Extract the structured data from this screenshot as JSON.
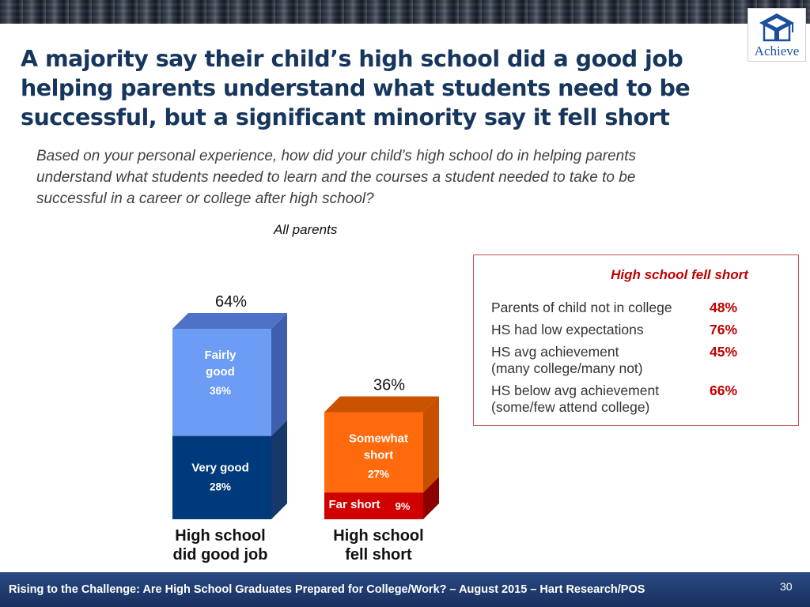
{
  "title_lines": [
    "A majority say their child’s high school did a good job",
    "helping parents understand what students need to be",
    "successful, but a significant minority say it fell short"
  ],
  "question_lines": [
    "Based on your personal experience, how did your child’s high school do in helping parents",
    "understand what students needed to learn and the courses a student needed to take to be",
    "successful in a career or college after high school?"
  ],
  "subset_label": "All parents",
  "logo": {
    "text": "Achieve",
    "icon": "schoolhouse-graduation-cap-icon",
    "color": "#1b4f9c"
  },
  "chart_data": {
    "type": "bar",
    "stacked": true,
    "ylim": [
      0,
      70
    ],
    "bars": [
      {
        "name": "High school did good job",
        "label_lines": [
          "High school",
          "did good job"
        ],
        "total": 64,
        "total_label": "64%",
        "segments": [
          {
            "name": "Very good",
            "label_lines": [
              "Very good"
            ],
            "value": 28,
            "value_label": "28%",
            "color": "#003a7a",
            "side_color": "#16386b",
            "label_color": "#ffffff"
          },
          {
            "name": "Fairly good",
            "label_lines": [
              "Fairly",
              "good"
            ],
            "value": 36,
            "value_label": "36%",
            "color": "#6d9cf4",
            "side_color": "#3d5fae",
            "label_color": "#ffffff"
          }
        ],
        "top_color": "#4f72c6"
      },
      {
        "name": "High school fell short",
        "label_lines": [
          "High school",
          "fell short"
        ],
        "total": 36,
        "total_label": "36%",
        "segments": [
          {
            "name": "Far short",
            "label_lines": [
              "Far short"
            ],
            "value": 9,
            "value_label": "9%",
            "color": "#d00000",
            "side_color": "#8c0000",
            "label_color": "#ffffff"
          },
          {
            "name": "Somewhat short",
            "label_lines": [
              "Somewhat",
              "short"
            ],
            "value": 27,
            "value_label": "27%",
            "color": "#ff6a0d",
            "side_color": "#c84f00",
            "label_color": "#ffffff"
          }
        ],
        "top_color": "#ca5200"
      }
    ]
  },
  "callout": {
    "title": "High school fell short",
    "rows": [
      {
        "label_lines": [
          "Parents of child not in college"
        ],
        "value": "48%"
      },
      {
        "label_lines": [
          "HS had low expectations"
        ],
        "value": "76%"
      },
      {
        "label_lines": [
          "HS avg achievement",
          "(many college/many not)"
        ],
        "value": "45%"
      },
      {
        "label_lines": [
          "HS below avg achievement",
          "(some/few attend college)"
        ],
        "value": "66%"
      }
    ]
  },
  "footer": {
    "text": "Rising to the Challenge:  Are High School Graduates Prepared for College/Work? – August 2015 – Hart Research/POS",
    "page_number": "30"
  }
}
